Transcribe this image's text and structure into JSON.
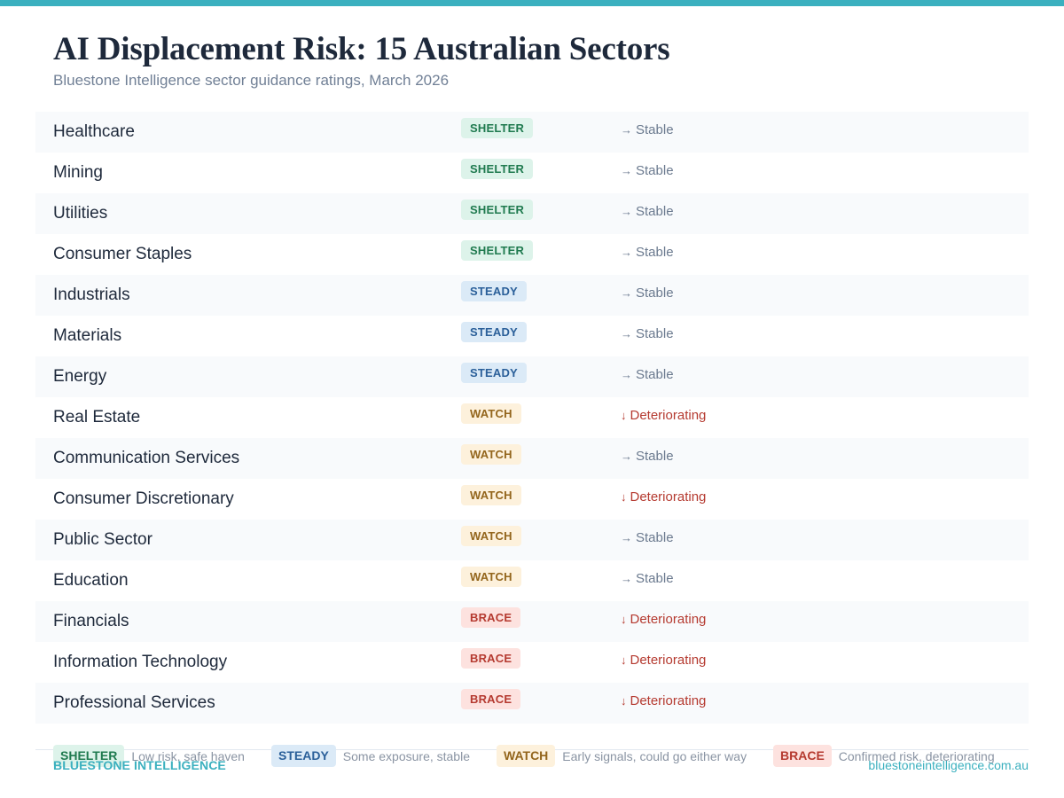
{
  "header": {
    "title": "AI Displacement Risk: 15 Australian Sectors",
    "subtitle": "Bluestone Intelligence sector guidance ratings, March 2026"
  },
  "colors": {
    "accent": "#3bb0bf",
    "shelter_bg": "#ddf3ea",
    "shelter_fg": "#1f7a4f",
    "steady_bg": "#dbeaf7",
    "steady_fg": "#2a5f99",
    "watch_bg": "#fdf1dc",
    "watch_fg": "#93651c",
    "brace_bg": "#fde2df",
    "brace_fg": "#b53a30",
    "stable_text": "#6b7a8f",
    "deteriorating_text": "#b53a30"
  },
  "rows": [
    {
      "sector": "Healthcare",
      "rating": "SHELTER",
      "arrow": "→",
      "trend": "Stable"
    },
    {
      "sector": "Mining",
      "rating": "SHELTER",
      "arrow": "→",
      "trend": "Stable"
    },
    {
      "sector": "Utilities",
      "rating": "SHELTER",
      "arrow": "→",
      "trend": "Stable"
    },
    {
      "sector": "Consumer Staples",
      "rating": "SHELTER",
      "arrow": "→",
      "trend": "Stable"
    },
    {
      "sector": "Industrials",
      "rating": "STEADY",
      "arrow": "→",
      "trend": "Stable"
    },
    {
      "sector": "Materials",
      "rating": "STEADY",
      "arrow": "→",
      "trend": "Stable"
    },
    {
      "sector": "Energy",
      "rating": "STEADY",
      "arrow": "→",
      "trend": "Stable"
    },
    {
      "sector": "Real Estate",
      "rating": "WATCH",
      "arrow": "↓",
      "trend": "Deteriorating"
    },
    {
      "sector": "Communication Services",
      "rating": "WATCH",
      "arrow": "→",
      "trend": "Stable"
    },
    {
      "sector": "Consumer Discretionary",
      "rating": "WATCH",
      "arrow": "↓",
      "trend": "Deteriorating"
    },
    {
      "sector": "Public Sector",
      "rating": "WATCH",
      "arrow": "→",
      "trend": "Stable"
    },
    {
      "sector": "Education",
      "rating": "WATCH",
      "arrow": "→",
      "trend": "Stable"
    },
    {
      "sector": "Financials",
      "rating": "BRACE",
      "arrow": "↓",
      "trend": "Deteriorating"
    },
    {
      "sector": "Information Technology",
      "rating": "BRACE",
      "arrow": "↓",
      "trend": "Deteriorating"
    },
    {
      "sector": "Professional Services",
      "rating": "BRACE",
      "arrow": "↓",
      "trend": "Deteriorating"
    }
  ],
  "legend": [
    {
      "label": "SHELTER",
      "description": "Low risk, safe haven"
    },
    {
      "label": "STEADY",
      "description": "Some exposure, stable"
    },
    {
      "label": "WATCH",
      "description": "Early signals, could go either way"
    },
    {
      "label": "BRACE",
      "description": "Confirmed risk, deteriorating"
    }
  ],
  "footer": {
    "brand": "BLUESTONE INTELLIGENCE",
    "url": "bluestoneintelligence.com.au"
  }
}
